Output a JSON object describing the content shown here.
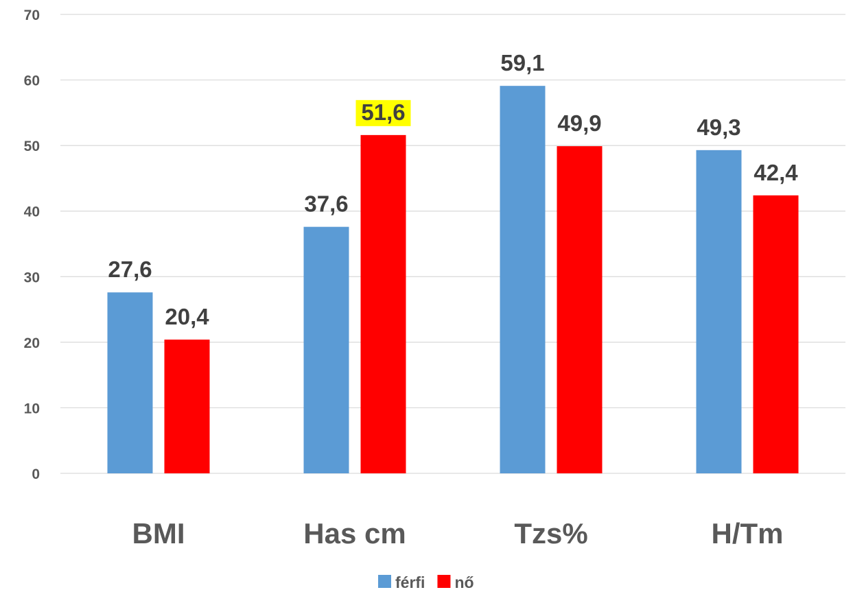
{
  "chart_data": {
    "type": "bar",
    "title": "",
    "xlabel": "",
    "ylabel": "",
    "ylim": [
      0,
      70
    ],
    "yticks": [
      0,
      10,
      20,
      30,
      40,
      50,
      60,
      70
    ],
    "ytick_labels": [
      "0",
      "10",
      "20",
      "30",
      "40",
      "50",
      "60",
      "70"
    ],
    "grid": true,
    "legend_position": "bottom",
    "categories": [
      "BMI",
      "Has cm",
      "Tzs%",
      "H/Tm"
    ],
    "series": [
      {
        "name": "férfi",
        "color": "#5b9bd5",
        "values": [
          27.6,
          37.6,
          59.1,
          49.3
        ],
        "labels": [
          "27,6",
          "37,6",
          "59,1",
          "49,3"
        ]
      },
      {
        "name": "nő",
        "color": "#ff0000",
        "values": [
          20.4,
          51.6,
          49.9,
          42.4
        ],
        "labels": [
          "20,4",
          "51,6",
          "49,9",
          "42,4"
        ]
      }
    ],
    "highlighted_label": {
      "series": 1,
      "category": 1,
      "color": "#ffff00"
    }
  }
}
